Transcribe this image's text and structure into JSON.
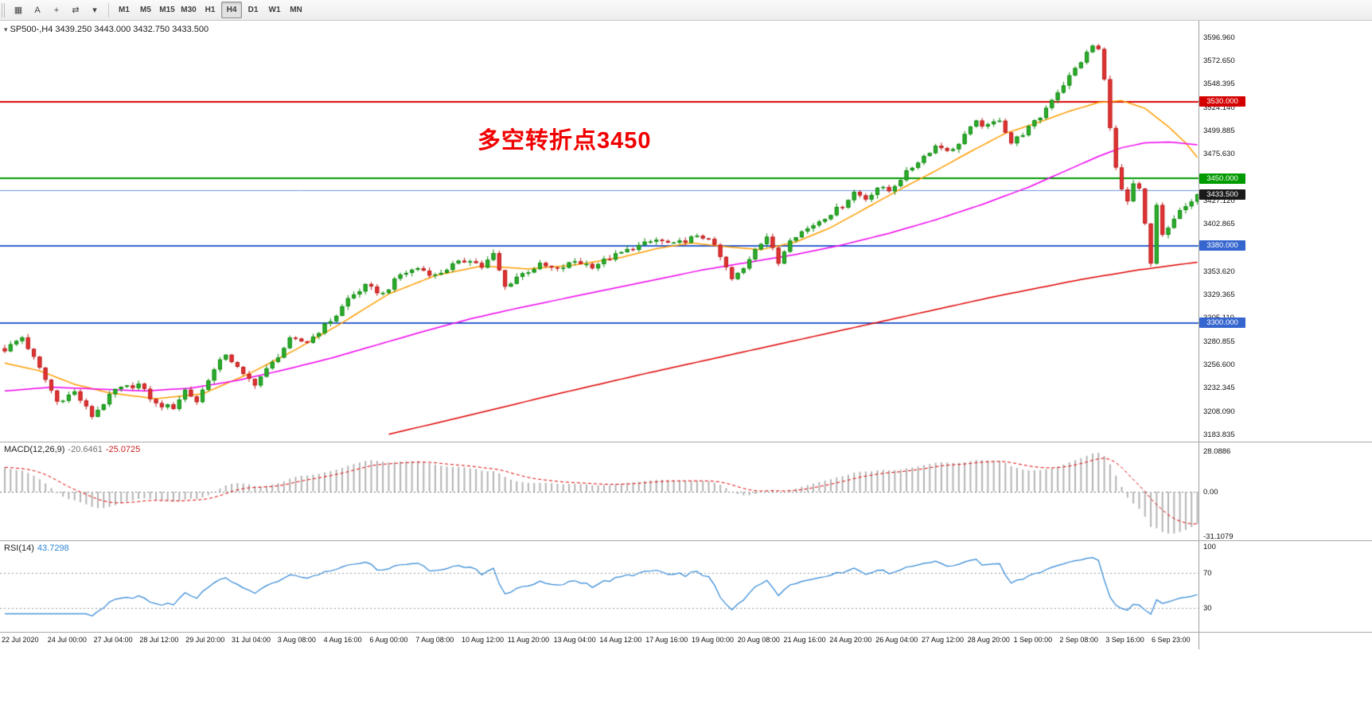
{
  "toolbar": {
    "icons": [
      {
        "name": "chart-grid-icon",
        "glyph": "▦"
      },
      {
        "name": "text-annotation-icon",
        "glyph": "A"
      },
      {
        "name": "crosshair-icon",
        "glyph": "+"
      },
      {
        "name": "cycle-timeframes-icon",
        "glyph": "⇄"
      },
      {
        "name": "dropdown-caret-icon",
        "glyph": "▾"
      }
    ],
    "timeframes": [
      {
        "label": "M1",
        "active": false
      },
      {
        "label": "M5",
        "active": false
      },
      {
        "label": "M15",
        "active": false
      },
      {
        "label": "M30",
        "active": false
      },
      {
        "label": "H1",
        "active": false
      },
      {
        "label": "H4",
        "active": true
      },
      {
        "label": "D1",
        "active": false
      },
      {
        "label": "W1",
        "active": false
      },
      {
        "label": "MN",
        "active": false
      }
    ]
  },
  "chart": {
    "title": "SP500-,H4",
    "ohlc": "3439.250 3443.000 3432.750 3433.500",
    "annotation": "多空转折点3450",
    "annotation_color": "#f00000",
    "price_axis": {
      "ticks": [
        {
          "label": "3596.960",
          "price": 3596.96
        },
        {
          "label": "3572.650",
          "price": 3572.65
        },
        {
          "label": "3548.395",
          "price": 3548.395
        },
        {
          "label": "3524.140",
          "price": 3524.14
        },
        {
          "label": "3499.885",
          "price": 3499.885
        },
        {
          "label": "3475.630",
          "price": 3475.63
        },
        {
          "label": "3427.120",
          "price": 3427.12
        },
        {
          "label": "3402.865",
          "price": 3402.865
        },
        {
          "label": "3353.620",
          "price": 3353.62
        },
        {
          "label": "3329.365",
          "price": 3329.365
        },
        {
          "label": "3305.110",
          "price": 3305.11
        },
        {
          "label": "3280.855",
          "price": 3280.855
        },
        {
          "label": "3256.600",
          "price": 3256.6
        },
        {
          "label": "3232.345",
          "price": 3232.345
        },
        {
          "label": "3208.090",
          "price": 3208.09
        },
        {
          "label": "3183.835",
          "price": 3183.835
        }
      ],
      "badges": [
        {
          "label": "3530.000",
          "price": 3530,
          "color": "#d40000"
        },
        {
          "label": "3450.000",
          "price": 3450,
          "color": "#009b00"
        },
        {
          "label": "3433.500",
          "price": 3433.5,
          "color": "#1a1a1a"
        },
        {
          "label": "3380.000",
          "price": 3380,
          "color": "#3565cf"
        },
        {
          "label": "3300.000",
          "price": 3300,
          "color": "#3565cf"
        }
      ]
    },
    "h_lines": [
      {
        "price": 3530,
        "color": "#d40000",
        "width": 2
      },
      {
        "price": 3450,
        "color": "#009b00",
        "width": 2
      },
      {
        "price": 3438,
        "color": "#6a95dd",
        "width": 1
      },
      {
        "price": 3380,
        "color": "#2f5fd0",
        "width": 2
      },
      {
        "price": 3300,
        "color": "#2f5fd0",
        "width": 2
      }
    ]
  },
  "chart_data": {
    "type": "candlestick",
    "symbol": "SP500-",
    "timeframe": "H4",
    "ohlc": {
      "open": 3439.25,
      "high": 3443.0,
      "low": 3432.75,
      "close": 3433.5
    },
    "bars": 206,
    "y_range": [
      3178,
      3605
    ],
    "price_anchors": [
      [
        0,
        3272
      ],
      [
        3,
        3285
      ],
      [
        6,
        3252
      ],
      [
        9,
        3218
      ],
      [
        12,
        3228
      ],
      [
        15,
        3203
      ],
      [
        19,
        3230
      ],
      [
        23,
        3236
      ],
      [
        26,
        3215
      ],
      [
        29,
        3212
      ],
      [
        31,
        3230
      ],
      [
        33,
        3218
      ],
      [
        35,
        3242
      ],
      [
        38,
        3268
      ],
      [
        41,
        3245
      ],
      [
        43,
        3237
      ],
      [
        46,
        3258
      ],
      [
        49,
        3282
      ],
      [
        52,
        3280
      ],
      [
        55,
        3297
      ],
      [
        57,
        3308
      ],
      [
        59,
        3325
      ],
      [
        62,
        3338
      ],
      [
        65,
        3330
      ],
      [
        68,
        3350
      ],
      [
        71,
        3357
      ],
      [
        74,
        3349
      ],
      [
        77,
        3360
      ],
      [
        80,
        3366
      ],
      [
        82,
        3358
      ],
      [
        84,
        3371
      ],
      [
        86,
        3337
      ],
      [
        88,
        3348
      ],
      [
        92,
        3360
      ],
      [
        95,
        3355
      ],
      [
        98,
        3364
      ],
      [
        101,
        3359
      ],
      [
        105,
        3370
      ],
      [
        108,
        3378
      ],
      [
        112,
        3386
      ],
      [
        115,
        3381
      ],
      [
        118,
        3388
      ],
      [
        121,
        3389
      ],
      [
        123,
        3368
      ],
      [
        125,
        3345
      ],
      [
        127,
        3356
      ],
      [
        129,
        3378
      ],
      [
        131,
        3390
      ],
      [
        133,
        3362
      ],
      [
        135,
        3388
      ],
      [
        138,
        3398
      ],
      [
        141,
        3410
      ],
      [
        144,
        3422
      ],
      [
        146,
        3436
      ],
      [
        148,
        3429
      ],
      [
        150,
        3441
      ],
      [
        152,
        3437
      ],
      [
        154,
        3450
      ],
      [
        157,
        3468
      ],
      [
        160,
        3484
      ],
      [
        163,
        3479
      ],
      [
        165,
        3496
      ],
      [
        167,
        3508
      ],
      [
        169,
        3504
      ],
      [
        171,
        3512
      ],
      [
        173,
        3487
      ],
      [
        175,
        3497
      ],
      [
        178,
        3514
      ],
      [
        180,
        3533
      ],
      [
        182,
        3548
      ],
      [
        185,
        3572
      ],
      [
        187,
        3588
      ],
      [
        188,
        3584
      ],
      [
        189,
        3552
      ],
      [
        190,
        3505
      ],
      [
        191,
        3460
      ],
      [
        192,
        3438
      ],
      [
        193,
        3424
      ],
      [
        194,
        3443
      ],
      [
        195,
        3438
      ],
      [
        196,
        3402
      ],
      [
        197,
        3360
      ],
      [
        198,
        3422
      ],
      [
        199,
        3392
      ],
      [
        200,
        3398
      ],
      [
        201,
        3408
      ],
      [
        202,
        3415
      ],
      [
        203,
        3420
      ],
      [
        204,
        3428
      ],
      [
        205,
        3433.5
      ]
    ],
    "ma_lines": [
      {
        "name": "ma-fast",
        "color": "#ff9d00",
        "anchors": [
          [
            0,
            3258
          ],
          [
            6,
            3250
          ],
          [
            12,
            3236
          ],
          [
            18,
            3227
          ],
          [
            26,
            3221
          ],
          [
            34,
            3226
          ],
          [
            42,
            3247
          ],
          [
            50,
            3272
          ],
          [
            58,
            3300
          ],
          [
            66,
            3330
          ],
          [
            74,
            3349
          ],
          [
            82,
            3359
          ],
          [
            90,
            3356
          ],
          [
            98,
            3360
          ],
          [
            106,
            3368
          ],
          [
            112,
            3377
          ],
          [
            118,
            3383
          ],
          [
            124,
            3379
          ],
          [
            130,
            3376
          ],
          [
            136,
            3384
          ],
          [
            142,
            3399
          ],
          [
            148,
            3419
          ],
          [
            154,
            3439
          ],
          [
            160,
            3458
          ],
          [
            166,
            3478
          ],
          [
            172,
            3497
          ],
          [
            178,
            3509
          ],
          [
            183,
            3520
          ],
          [
            188,
            3529
          ],
          [
            192,
            3531
          ],
          [
            196,
            3523
          ],
          [
            200,
            3504
          ],
          [
            203,
            3487
          ],
          [
            205,
            3472
          ]
        ]
      },
      {
        "name": "ma-mid",
        "color": "#f000f0",
        "anchors": [
          [
            0,
            3229
          ],
          [
            8,
            3233
          ],
          [
            16,
            3231
          ],
          [
            24,
            3229
          ],
          [
            32,
            3232
          ],
          [
            40,
            3240
          ],
          [
            48,
            3251
          ],
          [
            56,
            3263
          ],
          [
            64,
            3277
          ],
          [
            72,
            3291
          ],
          [
            80,
            3304
          ],
          [
            88,
            3315
          ],
          [
            96,
            3325
          ],
          [
            104,
            3335
          ],
          [
            112,
            3345
          ],
          [
            120,
            3355
          ],
          [
            128,
            3363
          ],
          [
            136,
            3371
          ],
          [
            144,
            3381
          ],
          [
            152,
            3393
          ],
          [
            160,
            3407
          ],
          [
            168,
            3423
          ],
          [
            176,
            3441
          ],
          [
            182,
            3457
          ],
          [
            188,
            3473
          ],
          [
            192,
            3482
          ],
          [
            196,
            3487
          ],
          [
            200,
            3488
          ],
          [
            205,
            3485
          ]
        ]
      },
      {
        "name": "ma-slow",
        "color": "#e00000",
        "anchors": [
          [
            66,
            3184
          ],
          [
            80,
            3204
          ],
          [
            95,
            3226
          ],
          [
            110,
            3247
          ],
          [
            125,
            3267
          ],
          [
            140,
            3287
          ],
          [
            155,
            3307
          ],
          [
            170,
            3327
          ],
          [
            185,
            3345
          ],
          [
            195,
            3355
          ],
          [
            205,
            3363
          ]
        ]
      }
    ],
    "candle_colors": {
      "up_fill": "#2fae2f",
      "up_stroke": "#0e8a0e",
      "down_fill": "#e23434",
      "down_stroke": "#bb1c1c"
    },
    "indicator_colors": {
      "macd_hist": "#b4b4b4",
      "macd_signal": "#e00000",
      "rsi_line": "#2f86d6"
    }
  },
  "macd": {
    "label": "MACD(12,26,9)",
    "value_main": "-20.6461",
    "value_signal": "-25.0725",
    "axis": [
      {
        "label": "28.0886",
        "value": 28.0886
      },
      {
        "label": "0.00",
        "value": 0
      },
      {
        "label": "-31.1079",
        "value": -31.1079
      }
    ]
  },
  "rsi": {
    "label": "RSI(14)",
    "value": "43.7298",
    "axis": [
      {
        "label": "100",
        "value": 100
      },
      {
        "label": "70",
        "value": 70
      },
      {
        "label": "30",
        "value": 30
      }
    ],
    "levels": [
      70,
      30
    ]
  },
  "time_axis": {
    "labels": [
      "22 Jul 2020",
      "24 Jul 00:00",
      "27 Jul 04:00",
      "28 Jul 12:00",
      "29 Jul 20:00",
      "31 Jul 04:00",
      "3 Aug 08:00",
      "4 Aug 16:00",
      "6 Aug 00:00",
      "7 Aug 08:00",
      "10 Aug 12:00",
      "11 Aug 20:00",
      "13 Aug 04:00",
      "14 Aug 12:00",
      "17 Aug 16:00",
      "19 Aug 00:00",
      "20 Aug 08:00",
      "21 Aug 16:00",
      "24 Aug 20:00",
      "26 Aug 04:00",
      "27 Aug 12:00",
      "28 Aug 20:00",
      "1 Sep 00:00",
      "2 Sep 08:00",
      "3 Sep 16:00",
      "6 Sep 23:00"
    ]
  }
}
